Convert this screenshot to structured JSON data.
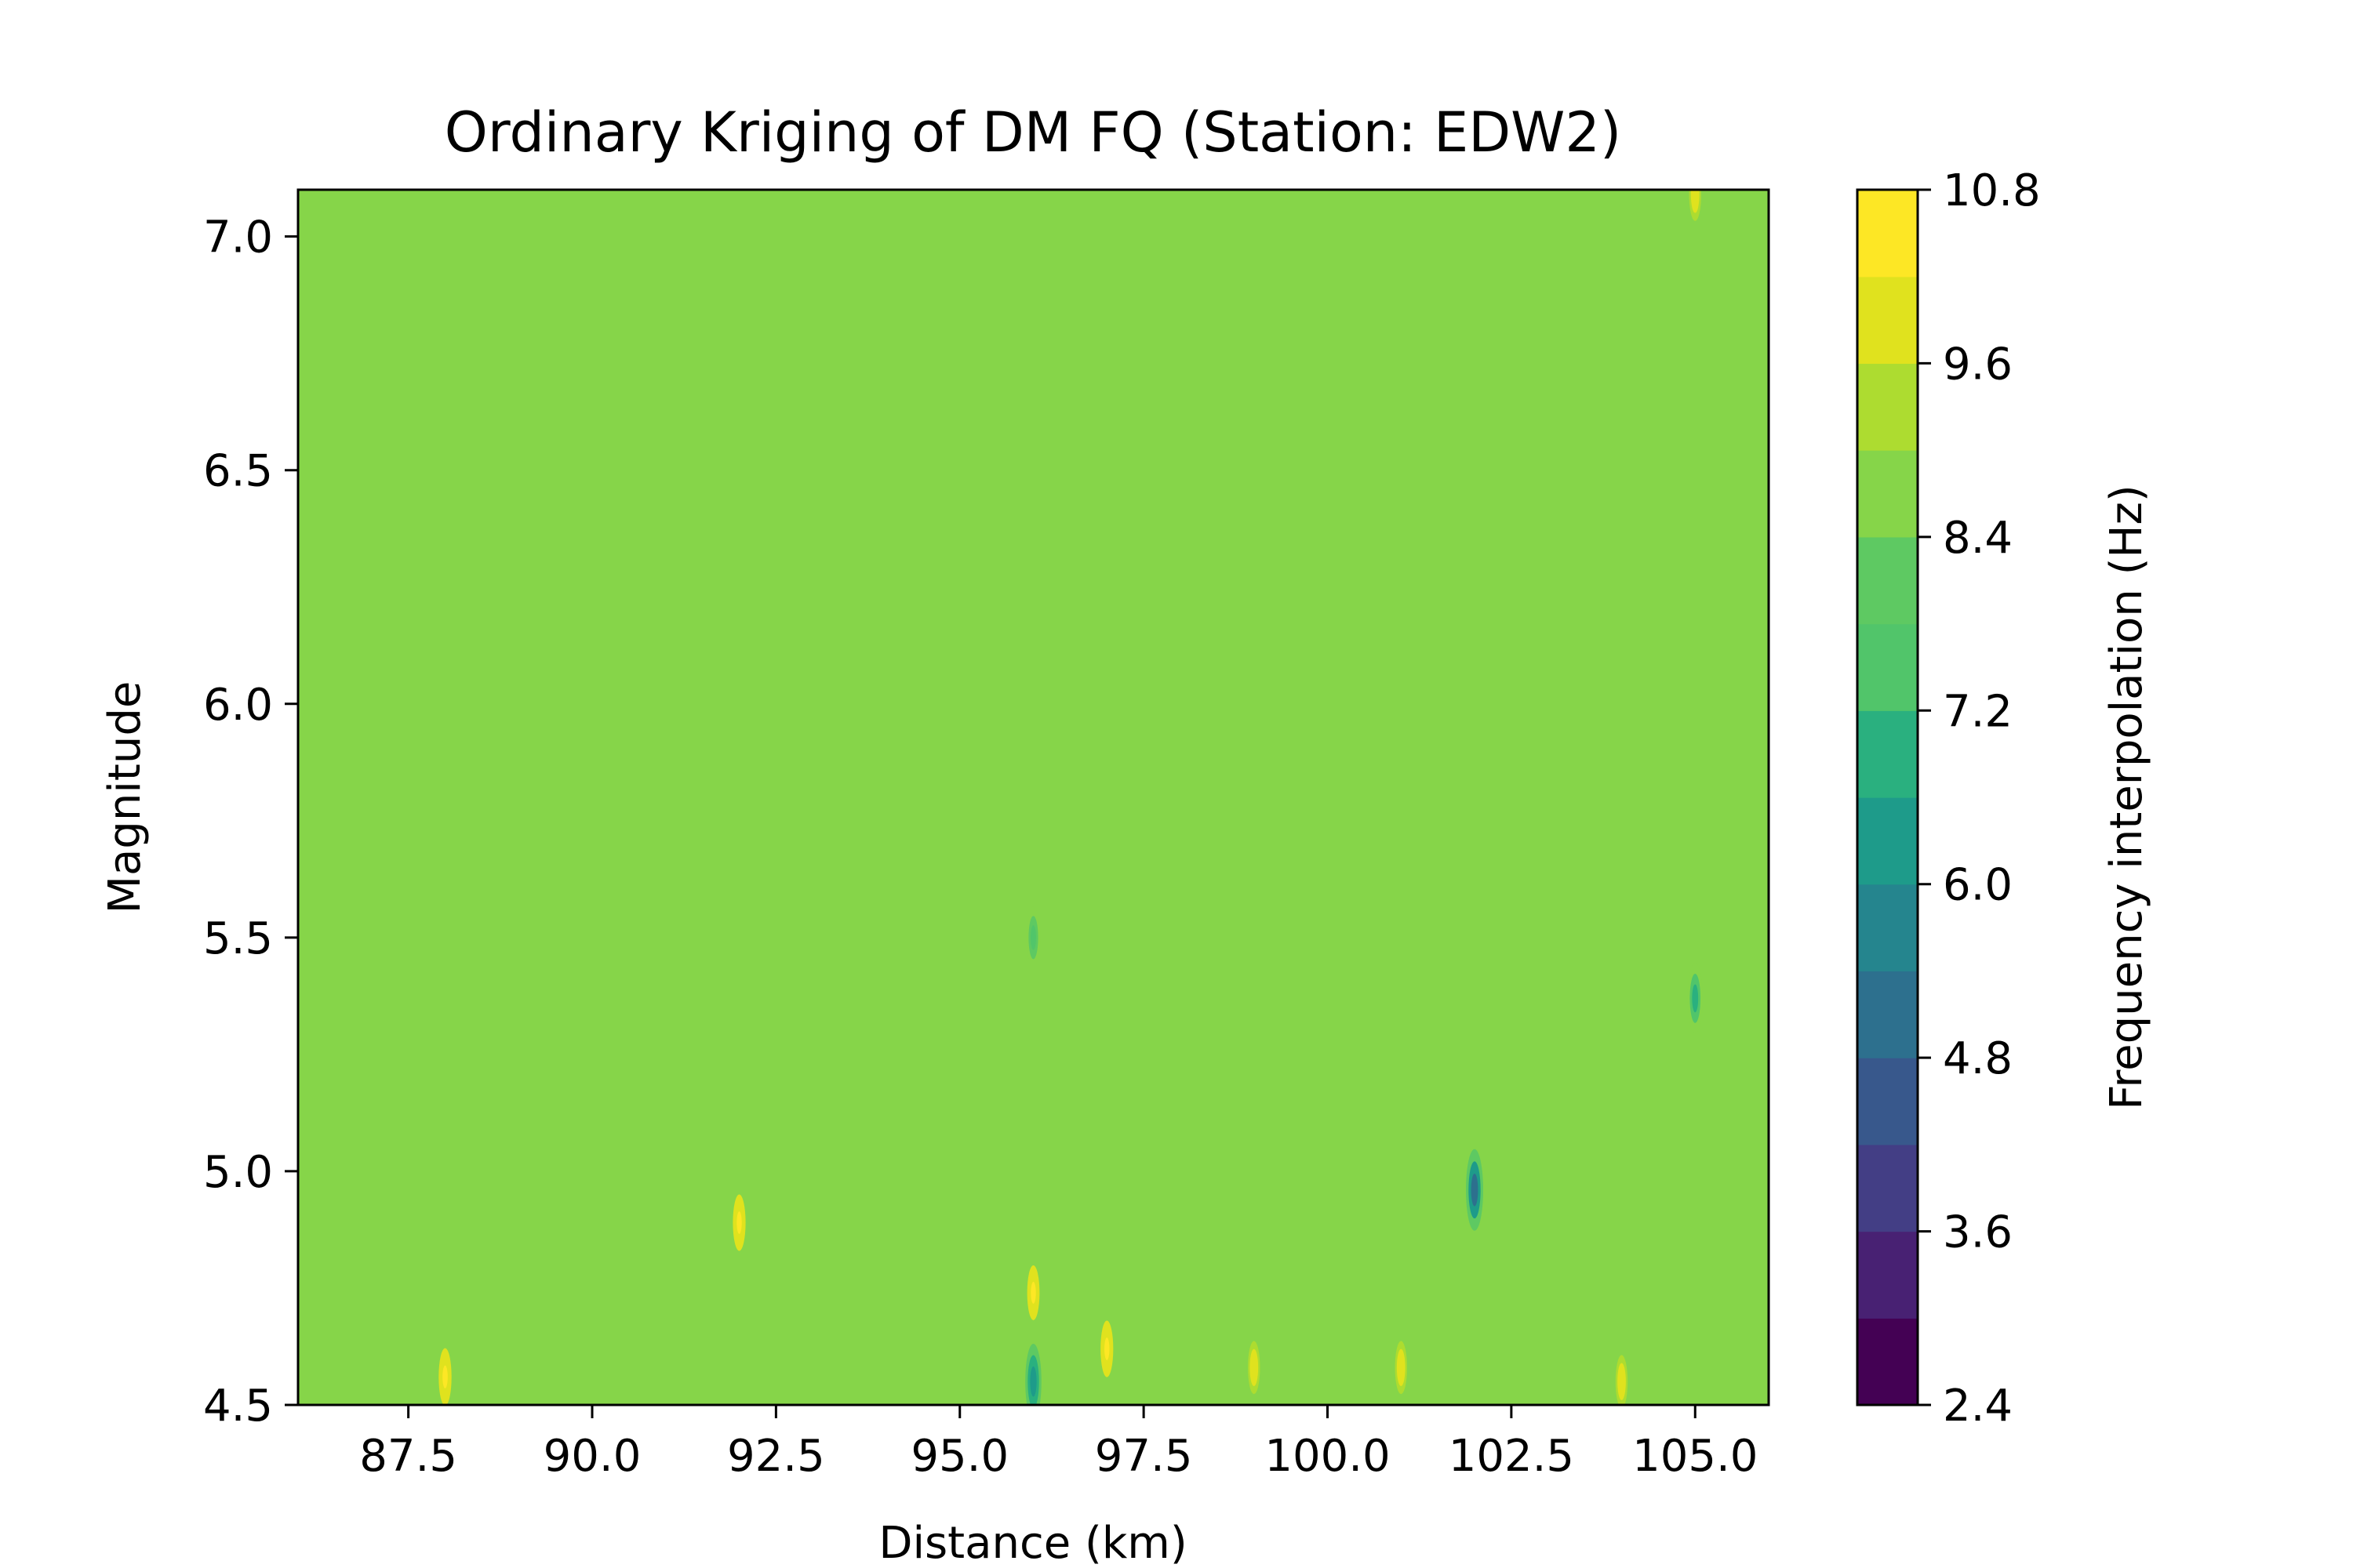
{
  "chart_data": {
    "type": "heatmap",
    "subtype": "filled-contour",
    "title": "Ordinary Kriging of DM FQ (Station: EDW2)",
    "xlabel": "Distance (km)",
    "ylabel": "Magnitude",
    "xlim": [
      86.0,
      106.0
    ],
    "ylim": [
      4.5,
      7.1
    ],
    "xticks": [
      "87.5",
      "90.0",
      "92.5",
      "95.0",
      "97.5",
      "100.0",
      "102.5",
      "105.0"
    ],
    "xtick_values": [
      87.5,
      90.0,
      92.5,
      95.0,
      97.5,
      100.0,
      102.5,
      105.0
    ],
    "yticks": [
      "4.5",
      "5.0",
      "5.5",
      "6.0",
      "6.5",
      "7.0"
    ],
    "ytick_values": [
      4.5,
      5.0,
      5.5,
      6.0,
      6.5,
      7.0
    ],
    "background_value": 9.3,
    "grid": false,
    "colormap": "viridis",
    "colorbar": {
      "label": "Frequency interpolation (Hz)",
      "min": 2.4,
      "max": 10.8,
      "levels": [
        2.4,
        3.0,
        3.6,
        4.2,
        4.8,
        5.4,
        6.0,
        6.6,
        7.2,
        7.8,
        8.4,
        9.0,
        9.6,
        10.2,
        10.8
      ],
      "colors": [
        "#440154",
        "#482173",
        "#433e85",
        "#38588c",
        "#2d708e",
        "#25858e",
        "#1e9b8a",
        "#2ab07f",
        "#51c56a",
        "#5ec962",
        "#86d549",
        "#addc30",
        "#e0e21e",
        "#fde725"
      ],
      "ticks": [
        "2.4",
        "3.6",
        "4.8",
        "6.0",
        "7.2",
        "8.4",
        "9.6",
        "10.8"
      ],
      "tick_values": [
        2.4,
        3.6,
        4.8,
        6.0,
        7.2,
        8.4,
        9.6,
        10.8
      ]
    },
    "anomalies": [
      {
        "x": 88.0,
        "y": 4.56,
        "value": 10.5
      },
      {
        "x": 92.0,
        "y": 4.89,
        "value": 10.4
      },
      {
        "x": 96.0,
        "y": 5.5,
        "value": 7.6
      },
      {
        "x": 96.0,
        "y": 4.55,
        "value": 6.0
      },
      {
        "x": 96.0,
        "y": 4.74,
        "value": 10.2
      },
      {
        "x": 97.0,
        "y": 4.62,
        "value": 10.4
      },
      {
        "x": 99.0,
        "y": 4.58,
        "value": 10.0
      },
      {
        "x": 101.0,
        "y": 4.58,
        "value": 10.0
      },
      {
        "x": 102.0,
        "y": 4.96,
        "value": 5.2
      },
      {
        "x": 104.0,
        "y": 4.55,
        "value": 10.0
      },
      {
        "x": 105.0,
        "y": 5.37,
        "value": 6.6
      },
      {
        "x": 105.0,
        "y": 7.09,
        "value": 10.0
      }
    ]
  }
}
